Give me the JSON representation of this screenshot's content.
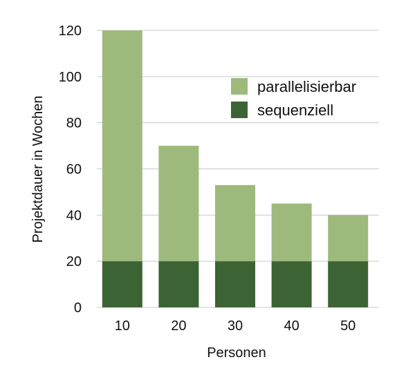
{
  "chart_data": {
    "type": "bar",
    "stacked": true,
    "categories": [
      "10",
      "20",
      "30",
      "40",
      "50"
    ],
    "series": [
      {
        "name": "sequenziell",
        "values": [
          20,
          20,
          20,
          20,
          20
        ],
        "color": "#3c6334"
      },
      {
        "name": "parallelisierbar",
        "values": [
          100,
          50,
          33,
          25,
          20
        ],
        "color": "#9dba7c"
      }
    ],
    "totals": [
      120,
      70,
      53,
      45,
      40
    ],
    "xlabel": "Personen",
    "ylabel": "Projektdauer in Wochen",
    "ylim": [
      0,
      120
    ],
    "yticks": [
      "0",
      "20",
      "40",
      "60",
      "80",
      "100",
      "120"
    ],
    "grid": true,
    "legend_position": "upper-right",
    "legend": [
      {
        "name": "parallelisierbar",
        "color": "#9dba7c"
      },
      {
        "name": "sequenziell",
        "color": "#3c6334"
      }
    ]
  }
}
